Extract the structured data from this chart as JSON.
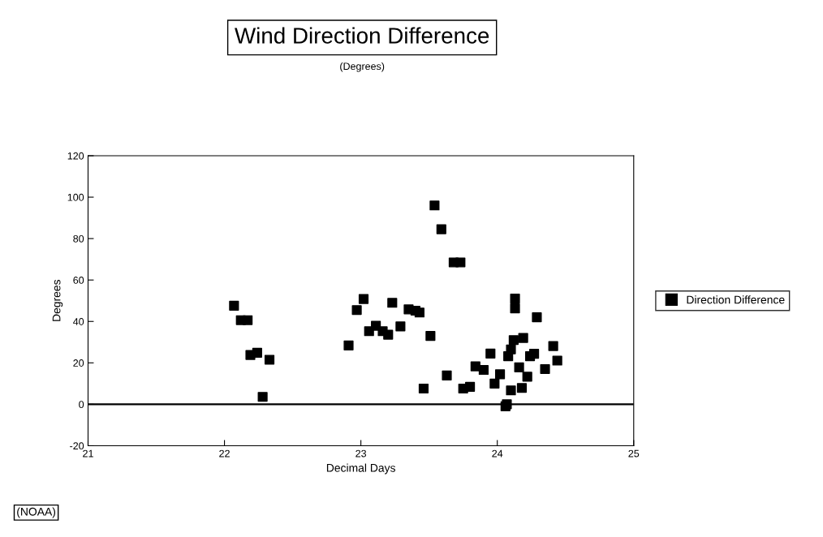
{
  "chart_data": {
    "type": "scatter",
    "title": "Wind Direction Difference",
    "subtitle": "(Degrees)",
    "xlabel": "Decimal Days",
    "ylabel": "Degrees",
    "annotations": [
      "(NOAA)"
    ],
    "xlim": [
      21,
      25
    ],
    "xticks": [
      21,
      22,
      23,
      24,
      25
    ],
    "ylim": [
      -20,
      120
    ],
    "yticks": [
      -20,
      0,
      20,
      40,
      60,
      80,
      100,
      120
    ],
    "grid": false,
    "legend": "right",
    "marker": "square",
    "ref_lines": [
      {
        "axis": "y",
        "value": 0,
        "color": "#000000"
      }
    ],
    "series": [
      {
        "name": "Direction Difference",
        "color": "#000000",
        "x": [
          23.54,
          23.59,
          23.68,
          23.73,
          22.07,
          22.12,
          22.17,
          22.19,
          22.24,
          22.33,
          22.28,
          22.91,
          22.97,
          23.02,
          23.06,
          23.11,
          23.16,
          23.2,
          23.23,
          23.29,
          23.35,
          23.4,
          23.43,
          23.51,
          23.46,
          23.63,
          23.75,
          23.8,
          23.95,
          23.84,
          23.9,
          24.13,
          24.13,
          24.06,
          24.29,
          24.41,
          24.44,
          24.35,
          24.19,
          24.12,
          24.1,
          24.08,
          24.24,
          24.16,
          24.22,
          24.18,
          24.02,
          23.98,
          24.07,
          24.1,
          24.27
        ],
        "values": [
          96,
          84.5,
          68.5,
          68.5,
          47.6,
          40.6,
          40.6,
          23.8,
          24.9,
          21.5,
          3.6,
          28.4,
          45.5,
          50.8,
          35.3,
          37.9,
          35.3,
          33.6,
          49,
          37.6,
          45.8,
          45.2,
          44.3,
          33,
          7.6,
          13.9,
          7.6,
          8.4,
          24.5,
          18.3,
          16.6,
          51,
          46.3,
          -1,
          42,
          28.1,
          21.1,
          17,
          32,
          31,
          26.5,
          23.2,
          23.2,
          17.8,
          13.3,
          7.9,
          14.5,
          10,
          0,
          6.7,
          24.4
        ]
      }
    ]
  }
}
